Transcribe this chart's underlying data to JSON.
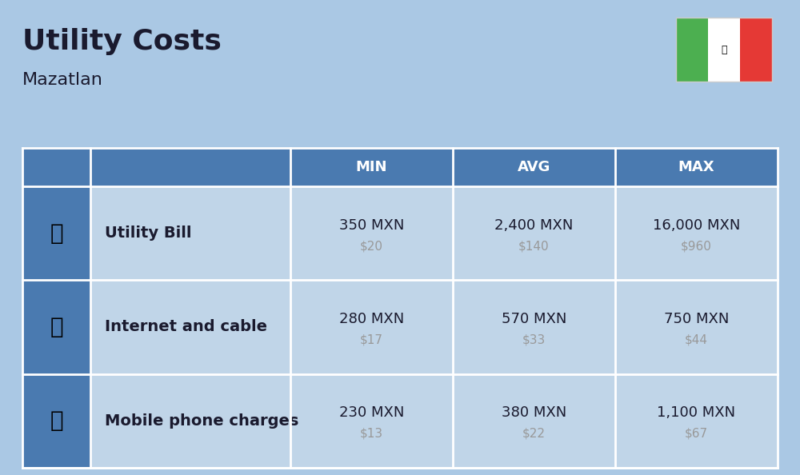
{
  "title": "Utility Costs",
  "subtitle": "Mazatlan",
  "background_color": "#aac8e4",
  "header_color": "#4a7ab0",
  "icon_col_color": "#4a7ab0",
  "row_color": "#c0d5e8",
  "separator_color": "#ffffff",
  "header_text_color": "#ffffff",
  "text_color": "#1a1a2e",
  "usd_color": "#999999",
  "title_fontsize": 26,
  "subtitle_fontsize": 16,
  "header_fontsize": 13,
  "cell_fontsize": 13,
  "label_fontsize": 14,
  "usd_fontsize": 11,
  "rows": [
    {
      "label": "Utility Bill",
      "min_mxn": "350 MXN",
      "min_usd": "$20",
      "avg_mxn": "2,400 MXN",
      "avg_usd": "$140",
      "max_mxn": "16,000 MXN",
      "max_usd": "$960"
    },
    {
      "label": "Internet and cable",
      "min_mxn": "280 MXN",
      "min_usd": "$17",
      "avg_mxn": "570 MXN",
      "avg_usd": "$33",
      "max_mxn": "750 MXN",
      "max_usd": "$44"
    },
    {
      "label": "Mobile phone charges",
      "min_mxn": "230 MXN",
      "min_usd": "$13",
      "avg_mxn": "380 MXN",
      "avg_usd": "$22",
      "max_mxn": "1,100 MXN",
      "max_usd": "$67"
    }
  ],
  "flag_green": "#4caf50",
  "flag_white": "#ffffff",
  "flag_red": "#e53935",
  "flag_border": "#cccccc"
}
